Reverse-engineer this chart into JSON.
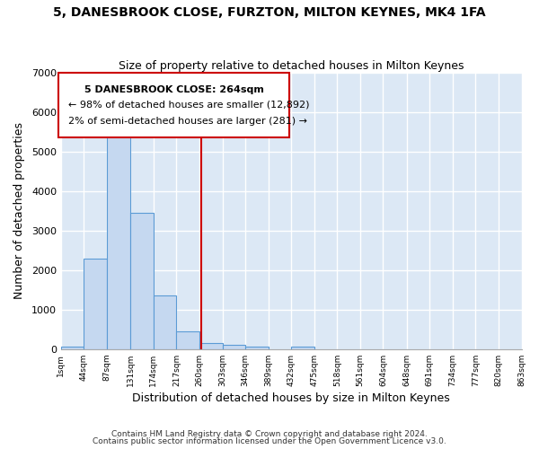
{
  "title": "5, DANESBROOK CLOSE, FURZTON, MILTON KEYNES, MK4 1FA",
  "subtitle": "Size of property relative to detached houses in Milton Keynes",
  "xlabel": "Distribution of detached houses by size in Milton Keynes",
  "ylabel": "Number of detached properties",
  "bin_edges": [
    1,
    44,
    87,
    131,
    174,
    217,
    260,
    303,
    346,
    389,
    432,
    475,
    518,
    561,
    604,
    648,
    691,
    734,
    777,
    820,
    863
  ],
  "bar_heights": [
    70,
    2280,
    5450,
    3450,
    1350,
    450,
    150,
    100,
    55,
    0,
    55,
    0,
    0,
    0,
    0,
    0,
    0,
    0,
    0,
    0
  ],
  "bar_color": "#c5d8f0",
  "bar_edge_color": "#5b9bd5",
  "background_color": "#dce8f5",
  "grid_color": "#ffffff",
  "vline_x": 264,
  "vline_color": "#cc0000",
  "ylim": [
    0,
    7000
  ],
  "yticks": [
    0,
    1000,
    2000,
    3000,
    4000,
    5000,
    6000,
    7000
  ],
  "annotation_text_line1": "5 DANESBROOK CLOSE: 264sqm",
  "annotation_text_line2": "← 98% of detached houses are smaller (12,892)",
  "annotation_text_line3": "2% of semi-detached houses are larger (281) →",
  "footer_line1": "Contains HM Land Registry data © Crown copyright and database right 2024.",
  "footer_line2": "Contains public sector information licensed under the Open Government Licence v3.0."
}
